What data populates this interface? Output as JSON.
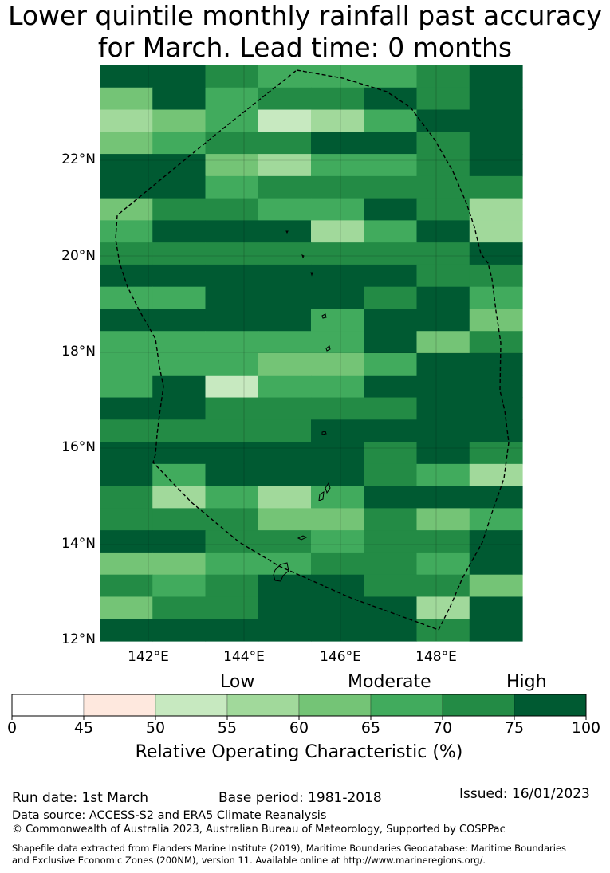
{
  "title_line1": "Lower quintile monthly rainfall past accuracy",
  "title_line2": "for March. Lead time: 0 months",
  "map": {
    "lat_labels": [
      "22°N",
      "20°N",
      "18°N",
      "16°N",
      "14°N",
      "12°N"
    ],
    "lon_labels": [
      "142°E",
      "144°E",
      "146°E",
      "148°E"
    ],
    "lat_range": [
      12,
      24
    ],
    "lon_range": [
      141,
      149.6
    ]
  },
  "colorbar": {
    "title": "Relative Operating Characteristic (%)",
    "category_labels": [
      "Low",
      "Moderate",
      "High"
    ],
    "ticks": [
      "0",
      "45",
      "50",
      "55",
      "60",
      "65",
      "70",
      "75",
      "100"
    ],
    "colors": [
      "#ffffff",
      "#fee8de",
      "#c7e9c0",
      "#a1d99b",
      "#74c476",
      "#41ab5d",
      "#238b45",
      "#005a32"
    ]
  },
  "footer": {
    "run_date": "Run date: 1st March",
    "base_period": "Base period: 1981-2018",
    "issued": "Issued: 16/01/2023",
    "data_source": "Data source: ACCESS-S2 and ERA5 Climate Reanalysis",
    "copyright": "© Commonwealth of Australia 2023, Australian Bureau of Meteorology, Supported by COSPPac",
    "shapefile_line1": "Shapefile data extracted from Flanders Marine Institute (2019), Maritime Boundaries Geodatabase: Maritime Boundaries",
    "shapefile_line2": "and Exclusive Economic Zones (200NM), version 11. Available online at http://www.marineregions.org/."
  },
  "grid_rows": [
    "77655567",
    "47566767",
    "34523577",
    "45667767",
    "77435567",
    "77566666",
    "46655763",
    "57773573",
    "66666667",
    "77777766",
    "55777675",
    "77775774",
    "55555746",
    "55544577",
    "57255777",
    "77666677",
    "66667777",
    "77777676",
    "75777653",
    "63535777",
    "66644645",
    "77665667",
    "44556657",
    "65677664",
    "46677737",
    "77777767"
  ]
}
